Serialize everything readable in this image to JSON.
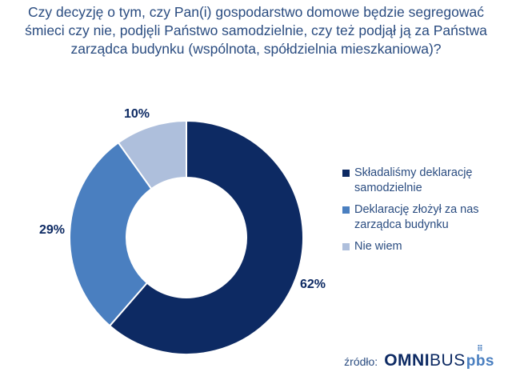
{
  "chart_data": {
    "type": "pie",
    "variant": "donut",
    "title_lines": [
      "Czy decyzję o tym, czy Pan(i) gospodarstwo domowe będzie segregować",
      "śmieci czy nie, podjęli Państwo samodzielnie, czy też podjął ją za Państwa",
      "zarządca budynku (wspólnota, spółdzielnia mieszkaniowa)?"
    ],
    "slices": [
      {
        "label": "Składaliśmy deklarację samodzielnie",
        "value": 62,
        "display": "62%",
        "color": "#0d2a63"
      },
      {
        "label": "Deklarację złożył za nas zarządca budynku",
        "value": 29,
        "display": "29%",
        "color": "#4a7fc0"
      },
      {
        "label": "Nie wiem",
        "value": 10,
        "display": "10%",
        "color": "#aebfdc"
      }
    ],
    "legend_position": "right"
  },
  "source": {
    "label": "źródło:",
    "logo_bold": "OMNI",
    "logo_regular": "BUS",
    "logo_suffix": "pbs"
  }
}
